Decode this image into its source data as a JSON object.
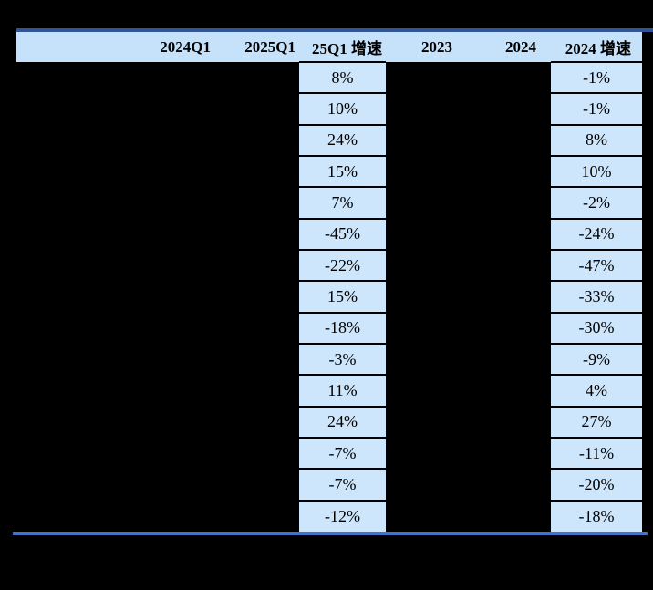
{
  "colors": {
    "page_background": "#000000",
    "header_background": "#C6E1FA",
    "highlight_cell_background": "#CDE6FC",
    "top_rule": "#2F5597",
    "bottom_rule": "#4472C4",
    "text": "#000000"
  },
  "chart_data": {
    "type": "table",
    "columns": [
      "",
      "2024Q1",
      "2025Q1",
      "25Q1 增速",
      "2023",
      "2024",
      "2024 增速"
    ],
    "highlight_col_indices": [
      3,
      6
    ],
    "rows": [
      [
        "",
        "",
        "",
        "8%",
        "",
        "",
        "-1%"
      ],
      [
        "",
        "",
        "",
        "10%",
        "",
        "",
        "-1%"
      ],
      [
        "",
        "",
        "",
        "24%",
        "",
        "",
        "8%"
      ],
      [
        "",
        "",
        "",
        "15%",
        "",
        "",
        "10%"
      ],
      [
        "",
        "",
        "",
        "7%",
        "",
        "",
        "-2%"
      ],
      [
        "",
        "",
        "",
        "-45%",
        "",
        "",
        "-24%"
      ],
      [
        "",
        "",
        "",
        "-22%",
        "",
        "",
        "-47%"
      ],
      [
        "",
        "",
        "",
        "15%",
        "",
        "",
        "-33%"
      ],
      [
        "",
        "",
        "",
        "-18%",
        "",
        "",
        "-30%"
      ],
      [
        "",
        "",
        "",
        "-3%",
        "",
        "",
        "-9%"
      ],
      [
        "",
        "",
        "",
        "11%",
        "",
        "",
        "4%"
      ],
      [
        "",
        "",
        "",
        "24%",
        "",
        "",
        "27%"
      ],
      [
        "",
        "",
        "",
        "-7%",
        "",
        "",
        "-11%"
      ],
      [
        "",
        "",
        "",
        "-7%",
        "",
        "",
        "-20%"
      ],
      [
        "",
        "",
        "",
        "-12%",
        "",
        "",
        "-18%"
      ]
    ],
    "series": [
      {
        "name": "25Q1 增速",
        "values_pct": [
          8,
          10,
          24,
          15,
          7,
          -45,
          -22,
          15,
          -18,
          -3,
          11,
          24,
          -7,
          -7,
          -12
        ]
      },
      {
        "name": "2024 增速",
        "values_pct": [
          -1,
          -1,
          8,
          10,
          -2,
          -24,
          -47,
          -33,
          -30,
          -9,
          4,
          27,
          -11,
          -20,
          -18
        ]
      }
    ]
  }
}
